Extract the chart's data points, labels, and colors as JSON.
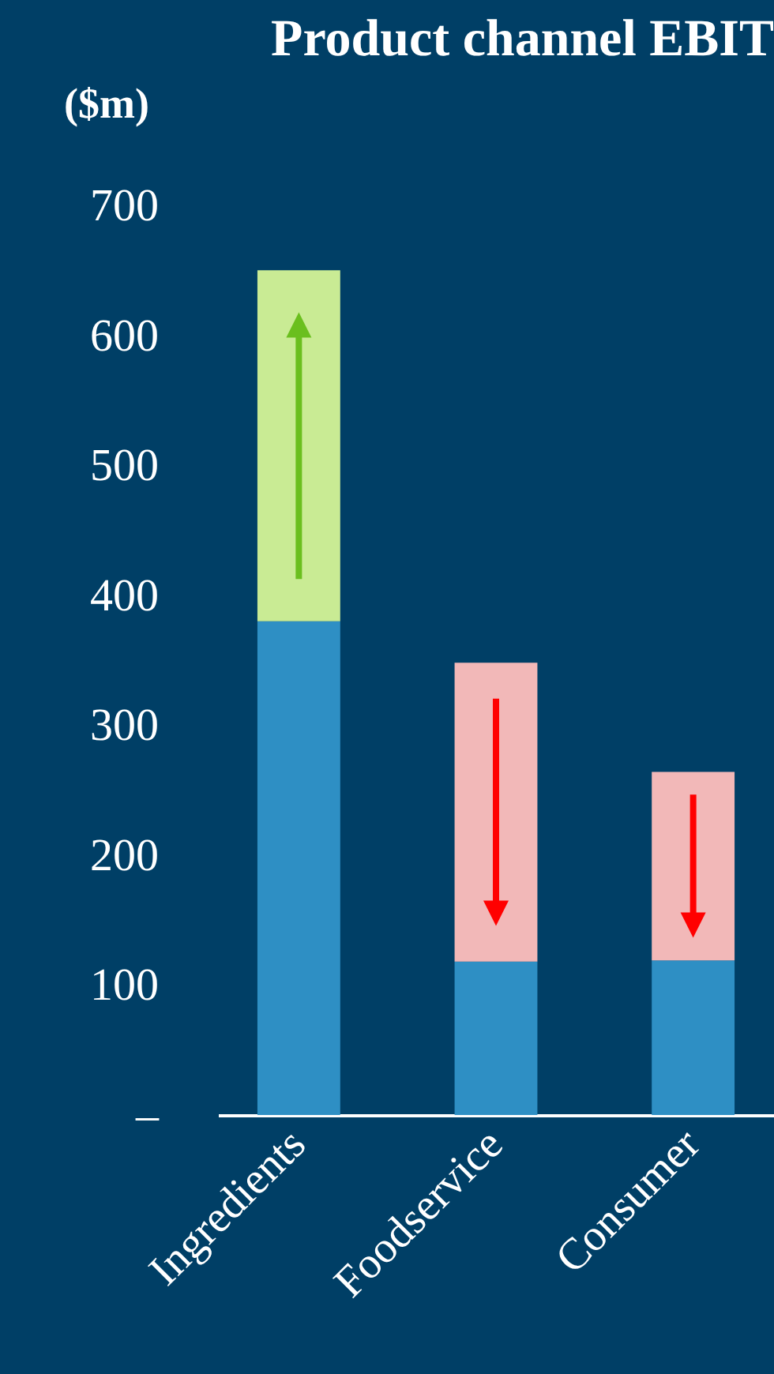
{
  "chart_data": {
    "type": "bar",
    "title": "Product channel EBIT",
    "ylabel": "($m)",
    "stacked": true,
    "categories": [
      "Ingredients",
      "Foodservice",
      "Consumer"
    ],
    "series": [
      {
        "color": "#2e8fc4",
        "values": [
          380,
          118,
          119
        ]
      },
      {
        "colors": [
          "#c9eb94",
          "#f2b8b8",
          "#f2b8b8"
        ],
        "values": [
          270,
          230,
          145
        ]
      }
    ],
    "ylim": [
      0,
      700
    ],
    "yticks": [
      {
        "value": 0,
        "label": "–"
      },
      100,
      200,
      300,
      400,
      500,
      600,
      700
    ]
  }
}
